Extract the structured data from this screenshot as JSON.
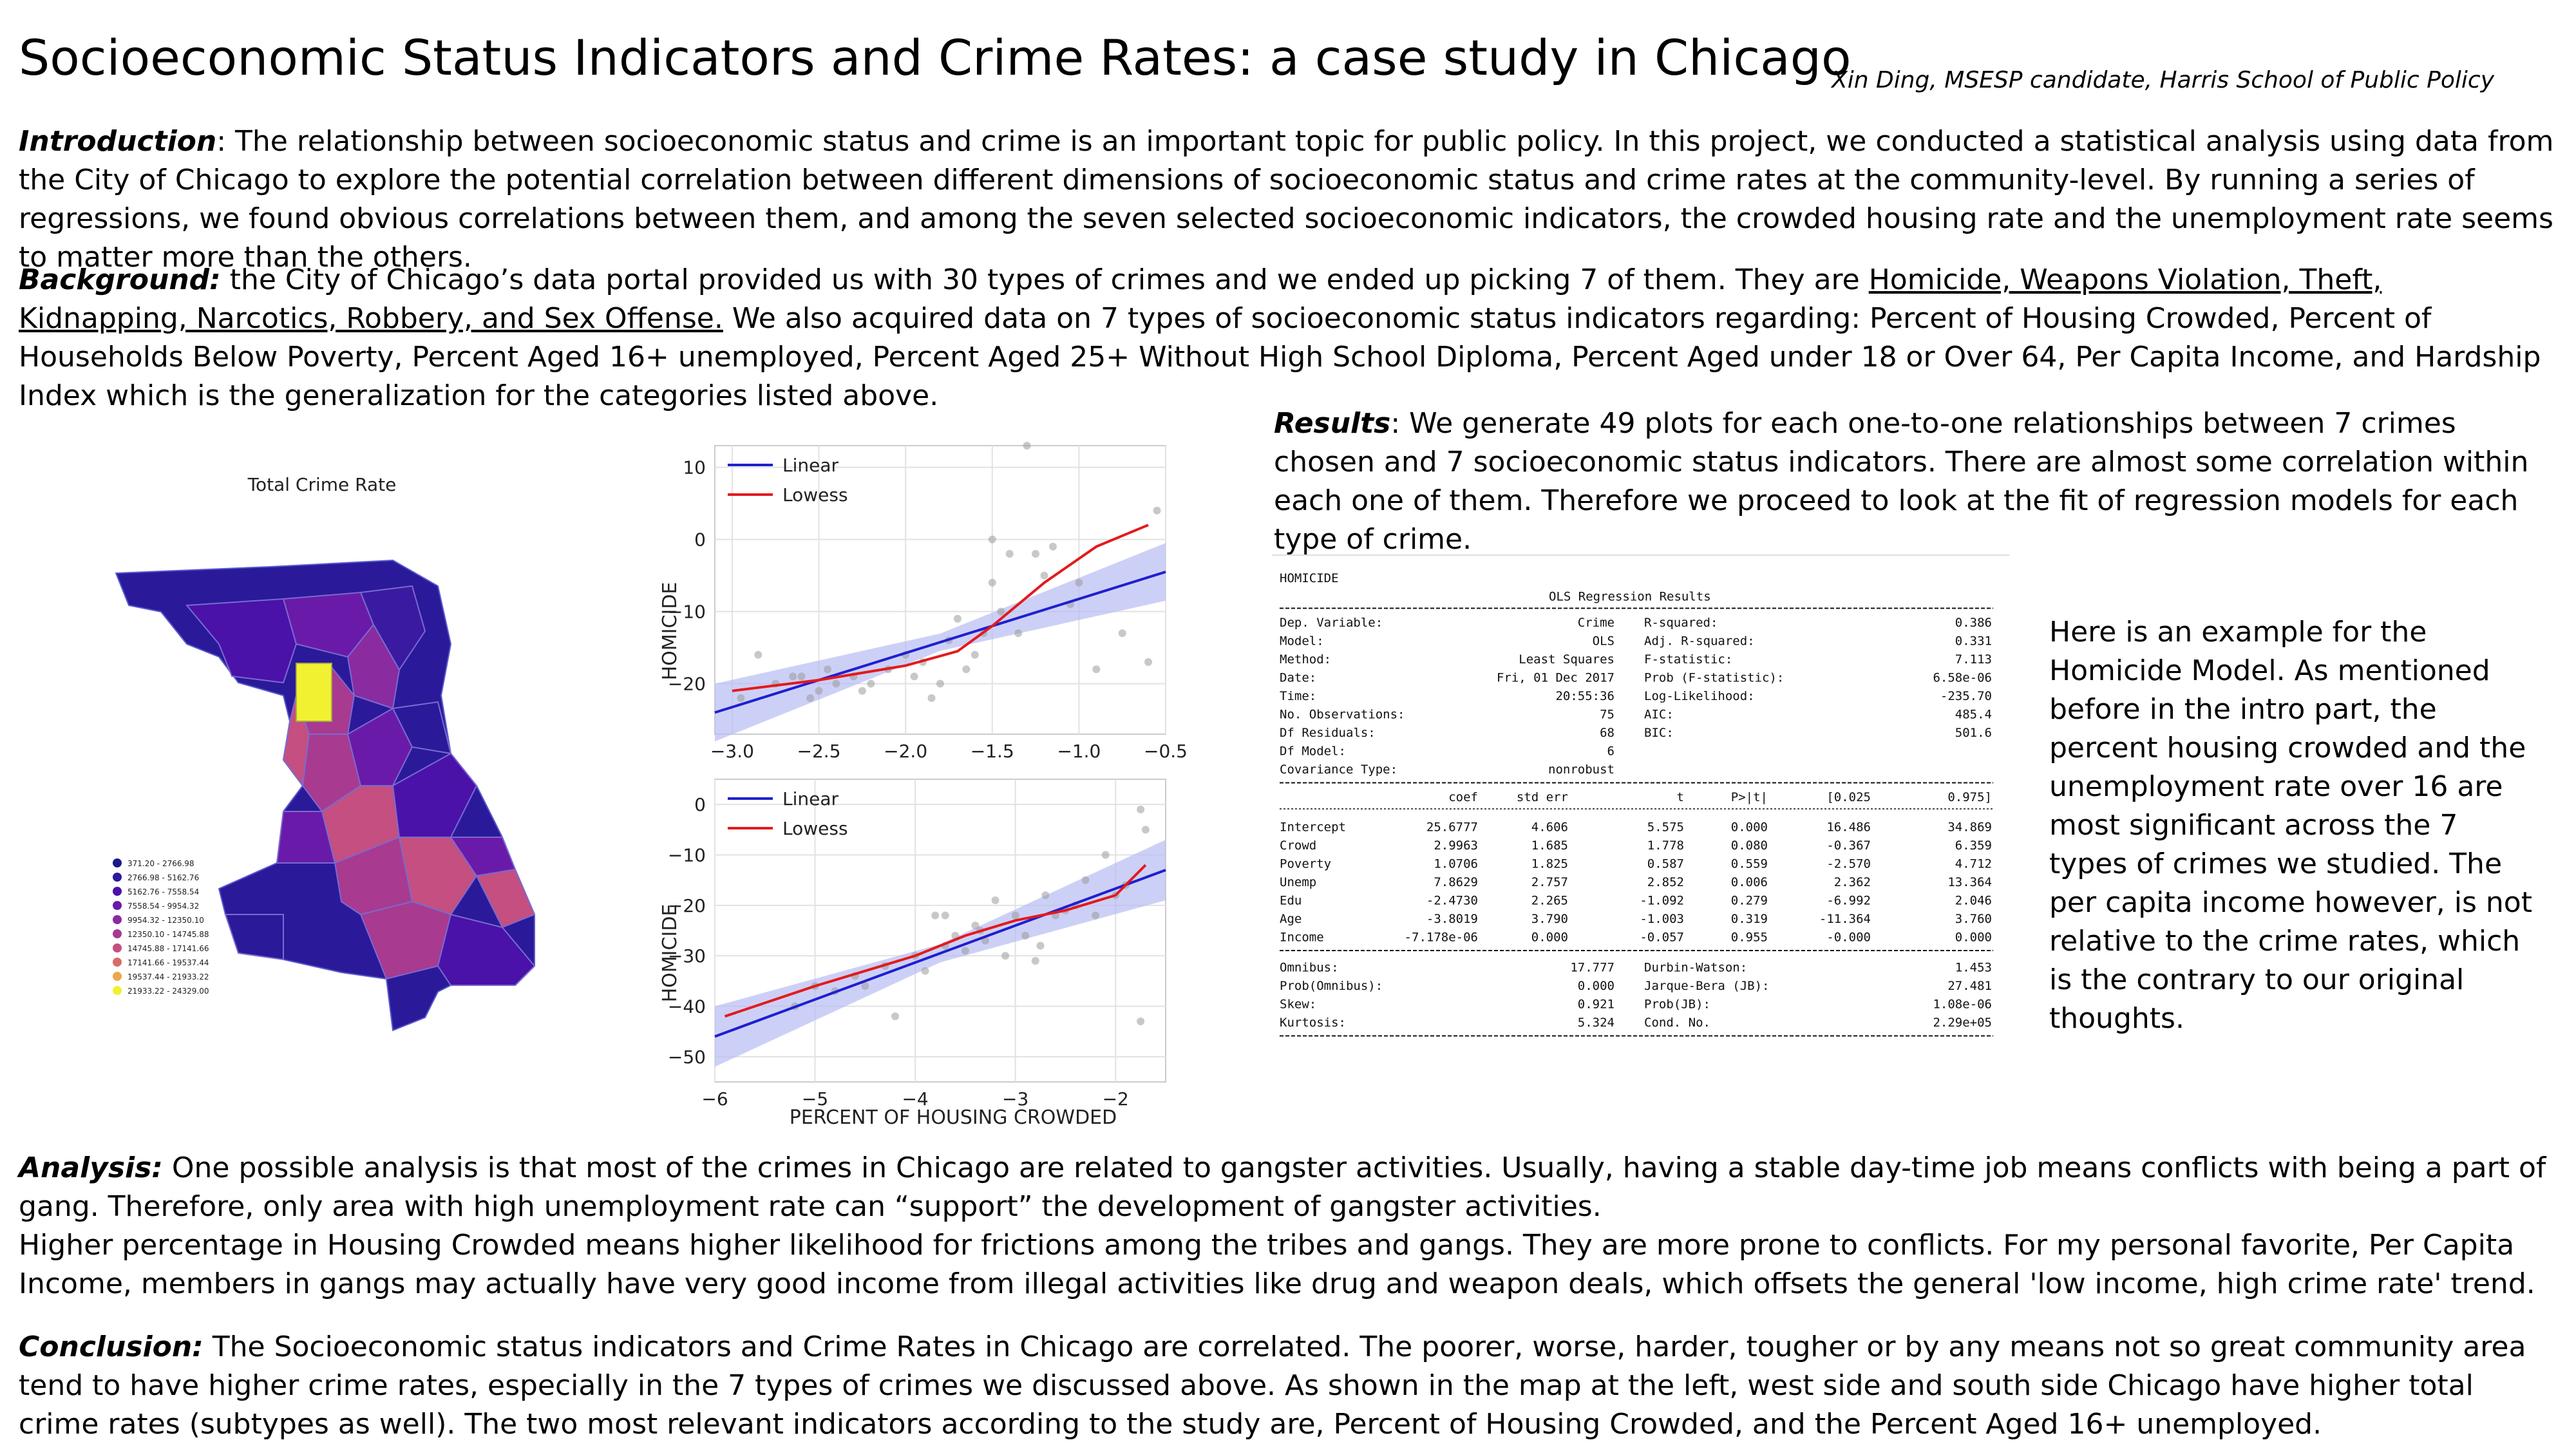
{
  "header": {
    "title": "Socioeconomic Status Indicators and Crime Rates: a case study in Chicago",
    "author": "Xin Ding, MSESP candidate, Harris School of Public Policy"
  },
  "intro": {
    "label": "Introduction",
    "text": ": The relationship between socioeconomic status and crime is an important topic for public policy. In this project, we conducted a statistical analysis using data from the City of Chicago to explore the potential correlation between different dimensions of socioeconomic status and crime rates at the community-level. By running a series of regressions, we found obvious correlations between them, and among the seven selected socioeconomic indicators, the crowded housing rate and the unemployment rate seems to matter more than the others."
  },
  "background": {
    "label": "Background:",
    "text_before": " the City of Chicago’s data portal provided us with 30 types of crimes and we ended up picking 7 of them. They are ",
    "underlined": "Homicide, Weapons Violation, Theft, Kidnapping, Narcotics, Robbery, and Sex Offense.",
    "text_after": " We also acquired data on 7 types of socioeconomic status indicators regarding: Percent of Housing Crowded, Percent of Households Below Poverty, Percent Aged 16+ unemployed, Percent Aged 25+ Without High School Diploma, Percent Aged under 18 or Over 64, Per Capita Income, and Hardship Index which is the generalization for the categories listed above."
  },
  "results": {
    "label": "Results",
    "text": ": We generate 49 plots for each one-to-one relationships between 7 crimes chosen and 7 socioeconomic status indicators. There are almost some correlation within each one of them. Therefore we proceed to look at the fit of regression models for each type of crime."
  },
  "example_text": "Here is an example for the Homicide Model. As mentioned before in the intro part, the percent housing crowded and the unemployment rate over 16 are most significant across the 7 types of crimes we studied. The per capita income however, is not relative to the crime rates, which is the contrary to our original thoughts.",
  "analysis": {
    "label": "Analysis:",
    "text1": " One possible analysis is that most of the crimes in Chicago are related to gangster activities. Usually, having a stable day-time job means conflicts with being a part of gang. Therefore, only area with high unemployment rate can “support” the development of gangster activities.",
    "text2": "Higher percentage in Housing Crowded means higher likelihood for frictions among the tribes and gangs. They are more prone to conflicts. For my personal favorite, Per Capita Income, members in gangs may actually have very good income from illegal activities like drug and weapon deals, which offsets the general 'low income, high crime rate' trend."
  },
  "conclusion": {
    "label": "Conclusion:",
    "text": " The Socioeconomic status indicators and Crime Rates in Chicago are correlated. The poorer, worse, harder, tougher or by any means not so great community area tend to have higher crime rates, especially in the 7 types of crimes we discussed above. As shown in the map at the left, west side and south side Chicago have higher total crime rates (subtypes as well). The two most relevant indicators according to the study are, Percent of Housing Crowded, and the Percent Aged 16+ unemployed."
  },
  "map": {
    "title": "Total Crime Rate",
    "legend": [
      {
        "label": "371.20 - 2766.98",
        "color": "#1a1a8c"
      },
      {
        "label": "2766.98 - 5162.76",
        "color": "#2c1a9e"
      },
      {
        "label": "5162.76 - 7558.54",
        "color": "#4a12a8"
      },
      {
        "label": "7558.54 - 9954.32",
        "color": "#6a1aa8"
      },
      {
        "label": "9954.32 - 12350.10",
        "color": "#8a2ba0"
      },
      {
        "label": "12350.10 - 14745.88",
        "color": "#a83a90"
      },
      {
        "label": "14745.88 - 17141.66",
        "color": "#c44f80"
      },
      {
        "label": "17141.66 - 19537.44",
        "color": "#da6a68"
      },
      {
        "label": "19537.44 - 21933.22",
        "color": "#eda64a"
      },
      {
        "label": "21933.22 - 24329.00",
        "color": "#f1f132"
      }
    ]
  },
  "chart_data": [
    {
      "type": "scatter",
      "title": "",
      "xlabel": "",
      "ylabel": "HOMICIDE",
      "xlim": [
        -3.1,
        -0.5
      ],
      "ylim": [
        -27,
        13
      ],
      "xticks": [
        "−3.0",
        "−2.5",
        "−2.0",
        "−1.5",
        "−1.0",
        "−0.5"
      ],
      "xtick_values": [
        -3.0,
        -2.5,
        -2.0,
        -1.5,
        -1.0,
        -0.5
      ],
      "yticks": [
        "10",
        "0",
        "−10",
        "−20"
      ],
      "ytick_values": [
        10,
        0,
        -10,
        -20
      ],
      "legend": [
        "Linear",
        "Lowess"
      ],
      "points": [
        {
          "x": -2.95,
          "y": -22
        },
        {
          "x": -2.85,
          "y": -16
        },
        {
          "x": -2.75,
          "y": -20
        },
        {
          "x": -2.6,
          "y": -19
        },
        {
          "x": -2.55,
          "y": -22
        },
        {
          "x": -2.5,
          "y": -21
        },
        {
          "x": -2.45,
          "y": -18
        },
        {
          "x": -2.4,
          "y": -20
        },
        {
          "x": -2.3,
          "y": -19
        },
        {
          "x": -2.2,
          "y": -20
        },
        {
          "x": -2.1,
          "y": -18
        },
        {
          "x": -2.0,
          "y": -16
        },
        {
          "x": -1.95,
          "y": -19
        },
        {
          "x": -1.9,
          "y": -17
        },
        {
          "x": -1.8,
          "y": -20
        },
        {
          "x": -1.75,
          "y": -14
        },
        {
          "x": -1.7,
          "y": -11
        },
        {
          "x": -1.65,
          "y": -18
        },
        {
          "x": -1.6,
          "y": -16
        },
        {
          "x": -1.55,
          "y": -13
        },
        {
          "x": -1.5,
          "y": -6
        },
        {
          "x": -1.5,
          "y": 0
        },
        {
          "x": -1.45,
          "y": -10
        },
        {
          "x": -1.4,
          "y": -2
        },
        {
          "x": -1.35,
          "y": -13
        },
        {
          "x": -1.3,
          "y": 13
        },
        {
          "x": -1.25,
          "y": -2
        },
        {
          "x": -1.2,
          "y": -5
        },
        {
          "x": -1.15,
          "y": -1
        },
        {
          "x": -1.05,
          "y": -9
        },
        {
          "x": -1.0,
          "y": -6
        },
        {
          "x": -0.9,
          "y": -18
        },
        {
          "x": -0.75,
          "y": -13
        },
        {
          "x": -0.6,
          "y": -17
        },
        {
          "x": -0.55,
          "y": 4
        },
        {
          "x": -2.25,
          "y": -21
        },
        {
          "x": -2.65,
          "y": -19
        },
        {
          "x": -1.85,
          "y": -22
        }
      ],
      "series": [
        {
          "name": "Linear",
          "x": [
            -3.1,
            -0.5
          ],
          "y": [
            -24,
            -4.5
          ]
        },
        {
          "name": "Lowess",
          "x": [
            -3.0,
            -2.5,
            -2.0,
            -1.7,
            -1.5,
            -1.2,
            -0.9,
            -0.6
          ],
          "y": [
            -21,
            -19.5,
            -17.5,
            -15.5,
            -12,
            -6,
            -1,
            2
          ]
        }
      ],
      "grid": true
    },
    {
      "type": "scatter",
      "title": "",
      "xlabel": "PERCENT OF HOUSING CROWDED",
      "ylabel": "HOMICIDE",
      "xlim": [
        -6,
        -1.5
      ],
      "ylim": [
        -55,
        5
      ],
      "xticks": [
        "−6",
        "−5",
        "−4",
        "−3",
        "−2"
      ],
      "xtick_values": [
        -6,
        -5,
        -4,
        -3,
        -2
      ],
      "yticks": [
        "0",
        "−10",
        "−20",
        "−30",
        "−40",
        "−50"
      ],
      "ytick_values": [
        0,
        -10,
        -20,
        -30,
        -40,
        -50
      ],
      "legend": [
        "Linear",
        "Lowess"
      ],
      "points": [
        {
          "x": -5.2,
          "y": -40
        },
        {
          "x": -5.0,
          "y": -36
        },
        {
          "x": -4.8,
          "y": -37
        },
        {
          "x": -4.6,
          "y": -34
        },
        {
          "x": -4.5,
          "y": -36
        },
        {
          "x": -4.3,
          "y": -32
        },
        {
          "x": -4.2,
          "y": -42
        },
        {
          "x": -4.0,
          "y": -30
        },
        {
          "x": -3.9,
          "y": -33
        },
        {
          "x": -3.8,
          "y": -22
        },
        {
          "x": -3.7,
          "y": -28
        },
        {
          "x": -3.6,
          "y": -26
        },
        {
          "x": -3.5,
          "y": -29
        },
        {
          "x": -3.4,
          "y": -24
        },
        {
          "x": -3.3,
          "y": -27
        },
        {
          "x": -3.2,
          "y": -19
        },
        {
          "x": -3.1,
          "y": -30
        },
        {
          "x": -3.0,
          "y": -22
        },
        {
          "x": -2.9,
          "y": -26
        },
        {
          "x": -2.8,
          "y": -31
        },
        {
          "x": -2.7,
          "y": -18
        },
        {
          "x": -2.6,
          "y": -22
        },
        {
          "x": -2.5,
          "y": -21
        },
        {
          "x": -2.4,
          "y": -20
        },
        {
          "x": -2.3,
          "y": -15
        },
        {
          "x": -2.2,
          "y": -22
        },
        {
          "x": -2.1,
          "y": -10
        },
        {
          "x": -2.0,
          "y": -18
        },
        {
          "x": -1.9,
          "y": -16
        },
        {
          "x": -1.75,
          "y": -1
        },
        {
          "x": -1.7,
          "y": -5
        },
        {
          "x": -1.75,
          "y": -43
        },
        {
          "x": -3.7,
          "y": -22
        },
        {
          "x": -3.35,
          "y": -25
        },
        {
          "x": -2.75,
          "y": -28
        }
      ],
      "series": [
        {
          "name": "Linear",
          "x": [
            -6,
            -1.5
          ],
          "y": [
            -46,
            -13
          ]
        },
        {
          "name": "Lowess",
          "x": [
            -5.9,
            -5.0,
            -4.0,
            -3.5,
            -3.0,
            -2.5,
            -2.0,
            -1.7
          ],
          "y": [
            -42,
            -36,
            -30,
            -26,
            -23,
            -21,
            -18,
            -12
          ]
        }
      ],
      "grid": true
    },
    {
      "type": "table",
      "title": "HOMICIDE",
      "subtitle": "OLS Regression Results",
      "summary_left": [
        [
          "Dep. Variable:",
          "Crime"
        ],
        [
          "Model:",
          "OLS"
        ],
        [
          "Method:",
          "Least Squares"
        ],
        [
          "Date:",
          "Fri, 01 Dec 2017"
        ],
        [
          "Time:",
          "20:55:36"
        ],
        [
          "No. Observations:",
          "75"
        ],
        [
          "Df Residuals:",
          "68"
        ],
        [
          "Df Model:",
          "6"
        ],
        [
          "Covariance Type:",
          "nonrobust"
        ]
      ],
      "summary_right": [
        [
          "R-squared:",
          "0.386"
        ],
        [
          "Adj. R-squared:",
          "0.331"
        ],
        [
          "F-statistic:",
          "7.113"
        ],
        [
          "Prob (F-statistic):",
          "6.58e-06"
        ],
        [
          "Log-Likelihood:",
          "-235.70"
        ],
        [
          "AIC:",
          "485.4"
        ],
        [
          "BIC:",
          "501.6"
        ]
      ],
      "columns": [
        "",
        "coef",
        "std err",
        "t",
        "P>|t|",
        "[0.025",
        "0.975]"
      ],
      "rows": [
        [
          "Intercept",
          "25.6777",
          "4.606",
          "5.575",
          "0.000",
          "16.486",
          "34.869"
        ],
        [
          "Crowd",
          "2.9963",
          "1.685",
          "1.778",
          "0.080",
          "-0.367",
          "6.359"
        ],
        [
          "Poverty",
          "1.0706",
          "1.825",
          "0.587",
          "0.559",
          "-2.570",
          "4.712"
        ],
        [
          "Unemp",
          "7.8629",
          "2.757",
          "2.852",
          "0.006",
          "2.362",
          "13.364"
        ],
        [
          "Edu",
          "-2.4730",
          "2.265",
          "-1.092",
          "0.279",
          "-6.992",
          "2.046"
        ],
        [
          "Age",
          "-3.8019",
          "3.790",
          "-1.003",
          "0.319",
          "-11.364",
          "3.760"
        ],
        [
          "Income",
          "-7.178e-06",
          "0.000",
          "-0.057",
          "0.955",
          "-0.000",
          "0.000"
        ]
      ],
      "diagnostics": [
        [
          "Omnibus:",
          "17.777",
          "Durbin-Watson:",
          "1.453"
        ],
        [
          "Prob(Omnibus):",
          "0.000",
          "Jarque-Bera (JB):",
          "27.481"
        ],
        [
          "Skew:",
          "0.921",
          "Prob(JB):",
          "1.08e-06"
        ],
        [
          "Kurtosis:",
          "5.324",
          "Cond. No.",
          "2.29e+05"
        ]
      ]
    }
  ],
  "colors": {
    "linear": "#1f1fd0",
    "lowess": "#e31a1c",
    "band": "#b8bcf2",
    "point": "#9a9a9a",
    "plot_bg": "#ffffff",
    "grid": "#e2e2e2"
  }
}
